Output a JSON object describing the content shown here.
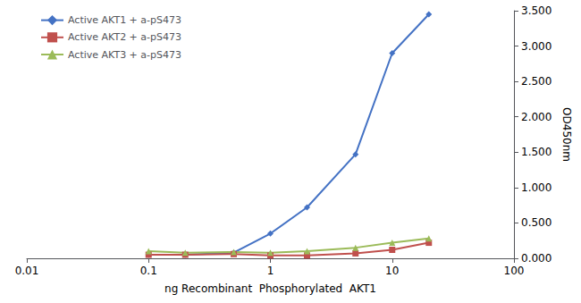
{
  "chart_data": {
    "type": "line",
    "x": [
      0.1,
      0.2,
      0.5,
      1.0,
      2.0,
      5.0,
      10.0,
      20.0
    ],
    "series": [
      {
        "name": "Active AKT1 + a-pS473",
        "color": "#4472C4",
        "marker": "diamond",
        "values": [
          0.05,
          0.05,
          0.08,
          0.35,
          0.72,
          1.47,
          2.9,
          3.45
        ]
      },
      {
        "name": "Active AKT2 + a-pS473",
        "color": "#C0504D",
        "marker": "square",
        "values": [
          0.05,
          0.05,
          0.06,
          0.04,
          0.04,
          0.07,
          0.12,
          0.22
        ]
      },
      {
        "name": "Active AKT3 + a-pS473",
        "color": "#9BBB59",
        "marker": "triangle",
        "values": [
          0.1,
          0.08,
          0.09,
          0.08,
          0.1,
          0.15,
          0.22,
          0.28
        ]
      }
    ],
    "xlabel": "ng Recombinant  Phosphorylated  AKT1",
    "ylabel": "OD450nm",
    "log": "x",
    "xlim": [
      0.01,
      100
    ],
    "xticks": [
      0.01,
      0.1,
      1,
      10,
      100
    ],
    "ylim": [
      0.0,
      3.5
    ],
    "yticks": [
      {
        "value": 0.0,
        "label": "0.000"
      },
      {
        "value": 0.5,
        "label": "0.500"
      },
      {
        "value": 1.0,
        "label": "1.000"
      },
      {
        "value": 1.5,
        "label": "1.500"
      },
      {
        "value": 2.0,
        "label": "2.000"
      },
      {
        "value": 2.5,
        "label": "2.500"
      },
      {
        "value": 3.0,
        "label": "3.000"
      },
      {
        "value": 3.5,
        "label": "3.500"
      }
    ],
    "grid": false,
    "legend": "upper left"
  }
}
